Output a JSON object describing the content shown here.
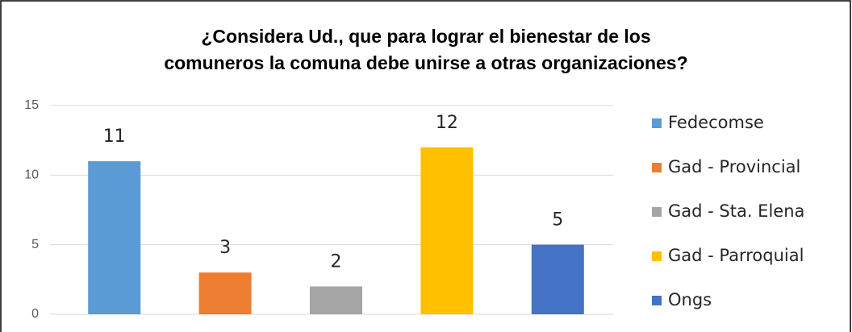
{
  "chart_data": {
    "type": "bar",
    "title": [
      "¿Considera Ud., que para lograr el bienestar de los",
      "comuneros la comuna debe unirse a otras organizaciones?"
    ],
    "categories": [
      "Fedecomse",
      "Gad - Provincial",
      "Gad - Sta. Elena",
      "Gad - Parroquial",
      "Ongs"
    ],
    "values": [
      11,
      3,
      2,
      12,
      5
    ],
    "colors": [
      "#5b9bd5",
      "#ed7d31",
      "#a5a5a5",
      "#ffc000",
      "#4472c4"
    ],
    "ylim": [
      0,
      15
    ],
    "yticks": [
      0,
      5,
      10,
      15
    ],
    "grid": true,
    "legend": "right"
  }
}
